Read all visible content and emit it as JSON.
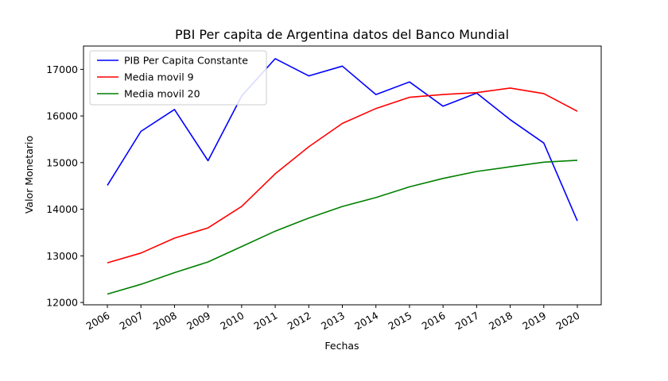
{
  "chart_data": {
    "type": "line",
    "title": "PBI Per capita de Argentina datos del Banco Mundial",
    "xlabel": "Fechas",
    "ylabel": "Valor Monetario",
    "x": [
      "2006",
      "2007",
      "2008",
      "2009",
      "2010",
      "2011",
      "2012",
      "2013",
      "2014",
      "2015",
      "2016",
      "2017",
      "2018",
      "2019",
      "2020"
    ],
    "ylim": [
      11950,
      17500
    ],
    "yticks": [
      12000,
      13000,
      14000,
      15000,
      16000,
      17000
    ],
    "legend_position": "top-left",
    "grid": false,
    "series": [
      {
        "name": "PIB Per Capita Constante",
        "color": "#0000ff",
        "values": [
          14510,
          15670,
          16140,
          15040,
          16430,
          17230,
          16860,
          17070,
          16460,
          16730,
          16210,
          16490,
          15920,
          15420,
          13750
        ]
      },
      {
        "name": "Media movil 9",
        "color": "#ff0000",
        "values": [
          12850,
          13060,
          13380,
          13600,
          14060,
          14760,
          15340,
          15840,
          16160,
          16400,
          16460,
          16500,
          16600,
          16480,
          16100
        ]
      },
      {
        "name": "Media movil 20",
        "color": "#008000",
        "values": [
          12180,
          12390,
          12640,
          12870,
          13200,
          13530,
          13810,
          14060,
          14250,
          14480,
          14660,
          14810,
          14910,
          15010,
          15050
        ]
      }
    ]
  }
}
